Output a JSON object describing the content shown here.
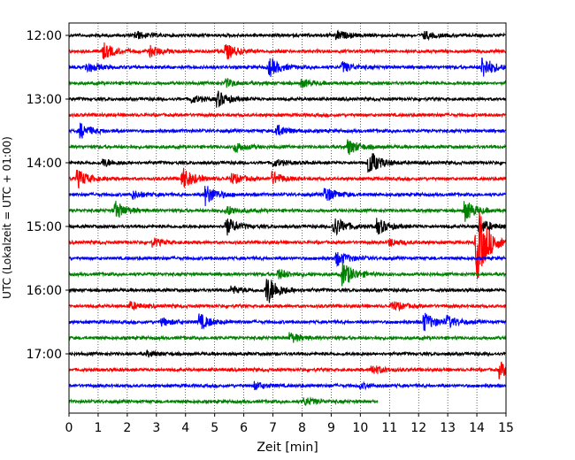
{
  "chart_data": {
    "type": "line",
    "title": "",
    "xlabel": "Zeit  [min]",
    "ylabel": "UTC (Lokalzeit = UTC + 01:00)",
    "xlim": [
      0,
      15
    ],
    "x_ticks": [
      "0",
      "1",
      "2",
      "3",
      "4",
      "5",
      "6",
      "7",
      "8",
      "9",
      "10",
      "11",
      "12",
      "13",
      "14",
      "15"
    ],
    "y_ticks": [
      {
        "label": "12:00",
        "row": 0
      },
      {
        "label": "13:00",
        "row": 4
      },
      {
        "label": "14:00",
        "row": 8
      },
      {
        "label": "15:00",
        "row": 12
      },
      {
        "label": "16:00",
        "row": 16
      },
      {
        "label": "17:00",
        "row": 20
      }
    ],
    "grid": "vertical dotted at each minute",
    "trace_interval_minutes": 15,
    "color_cycle": [
      "#000000",
      "#ff0000",
      "#0000ff",
      "#008000"
    ],
    "rows": [
      {
        "start": "12:00",
        "events": [
          {
            "t": 2.3,
            "a": 0.3
          },
          {
            "t": 9.2,
            "a": 0.35
          },
          {
            "t": 12.2,
            "a": 0.3
          }
        ]
      },
      {
        "start": "12:15",
        "events": [
          {
            "t": 1.2,
            "a": 0.6
          },
          {
            "t": 2.8,
            "a": 0.4
          },
          {
            "t": 5.4,
            "a": 0.6
          }
        ]
      },
      {
        "start": "12:30",
        "events": [
          {
            "t": 0.6,
            "a": 0.4
          },
          {
            "t": 6.9,
            "a": 0.7
          },
          {
            "t": 9.4,
            "a": 0.4
          },
          {
            "t": 14.2,
            "a": 0.9
          }
        ]
      },
      {
        "start": "12:45",
        "events": [
          {
            "t": 5.4,
            "a": 0.3
          },
          {
            "t": 8.0,
            "a": 0.3
          }
        ]
      },
      {
        "start": "13:00",
        "events": [
          {
            "t": 5.1,
            "a": 0.6
          },
          {
            "t": 4.2,
            "a": 0.3
          }
        ]
      },
      {
        "start": "13:15",
        "events": []
      },
      {
        "start": "13:30",
        "events": [
          {
            "t": 0.4,
            "a": 0.6
          },
          {
            "t": 7.1,
            "a": 0.5
          }
        ]
      },
      {
        "start": "13:45",
        "events": [
          {
            "t": 9.6,
            "a": 0.6
          },
          {
            "t": 5.7,
            "a": 0.4
          }
        ]
      },
      {
        "start": "14:00",
        "events": [
          {
            "t": 10.3,
            "a": 1.0
          },
          {
            "t": 1.2,
            "a": 0.3
          },
          {
            "t": 7.0,
            "a": 0.3
          }
        ]
      },
      {
        "start": "14:15",
        "events": [
          {
            "t": 0.3,
            "a": 0.7
          },
          {
            "t": 3.9,
            "a": 0.9
          },
          {
            "t": 5.6,
            "a": 0.4
          },
          {
            "t": 7.0,
            "a": 0.5
          }
        ]
      },
      {
        "start": "14:30",
        "events": [
          {
            "t": 4.7,
            "a": 0.8
          },
          {
            "t": 8.8,
            "a": 0.6
          },
          {
            "t": 2.2,
            "a": 0.3
          }
        ]
      },
      {
        "start": "14:45",
        "events": [
          {
            "t": 1.6,
            "a": 0.7
          },
          {
            "t": 13.6,
            "a": 0.8
          },
          {
            "t": 5.4,
            "a": 0.4
          }
        ]
      },
      {
        "start": "15:00",
        "events": [
          {
            "t": 5.4,
            "a": 0.7
          },
          {
            "t": 9.1,
            "a": 0.8
          },
          {
            "t": 10.6,
            "a": 0.6
          },
          {
            "t": 14.1,
            "a": 0.6
          }
        ]
      },
      {
        "start": "15:15",
        "events": [
          {
            "t": 14.0,
            "a": 3.2
          },
          {
            "t": 11.0,
            "a": 0.3
          },
          {
            "t": 2.9,
            "a": 0.3
          }
        ]
      },
      {
        "start": "15:30",
        "events": [
          {
            "t": 9.2,
            "a": 0.6
          }
        ]
      },
      {
        "start": "15:45",
        "events": [
          {
            "t": 9.4,
            "a": 1.0
          },
          {
            "t": 7.2,
            "a": 0.4
          }
        ]
      },
      {
        "start": "16:00",
        "events": [
          {
            "t": 6.8,
            "a": 1.2
          },
          {
            "t": 5.6,
            "a": 0.3
          }
        ]
      },
      {
        "start": "16:15",
        "events": [
          {
            "t": 11.1,
            "a": 0.4
          },
          {
            "t": 2.1,
            "a": 0.3
          }
        ]
      },
      {
        "start": "16:30",
        "events": [
          {
            "t": 4.5,
            "a": 0.6
          },
          {
            "t": 12.2,
            "a": 0.7
          },
          {
            "t": 13.0,
            "a": 0.4
          },
          {
            "t": 3.2,
            "a": 0.3
          }
        ]
      },
      {
        "start": "16:45",
        "events": [
          {
            "t": 7.6,
            "a": 0.4
          }
        ]
      },
      {
        "start": "17:00",
        "events": [
          {
            "t": 2.7,
            "a": 0.2
          }
        ]
      },
      {
        "start": "17:15",
        "events": [
          {
            "t": 14.8,
            "a": 0.6
          },
          {
            "t": 10.4,
            "a": 0.4
          }
        ]
      },
      {
        "start": "17:30",
        "events": [
          {
            "t": 6.4,
            "a": 0.3
          },
          {
            "t": 10.0,
            "a": 0.2
          }
        ]
      },
      {
        "start": "17:45",
        "events": [
          {
            "t": 8.1,
            "a": 0.3
          }
        ],
        "end": 10.6
      }
    ]
  }
}
